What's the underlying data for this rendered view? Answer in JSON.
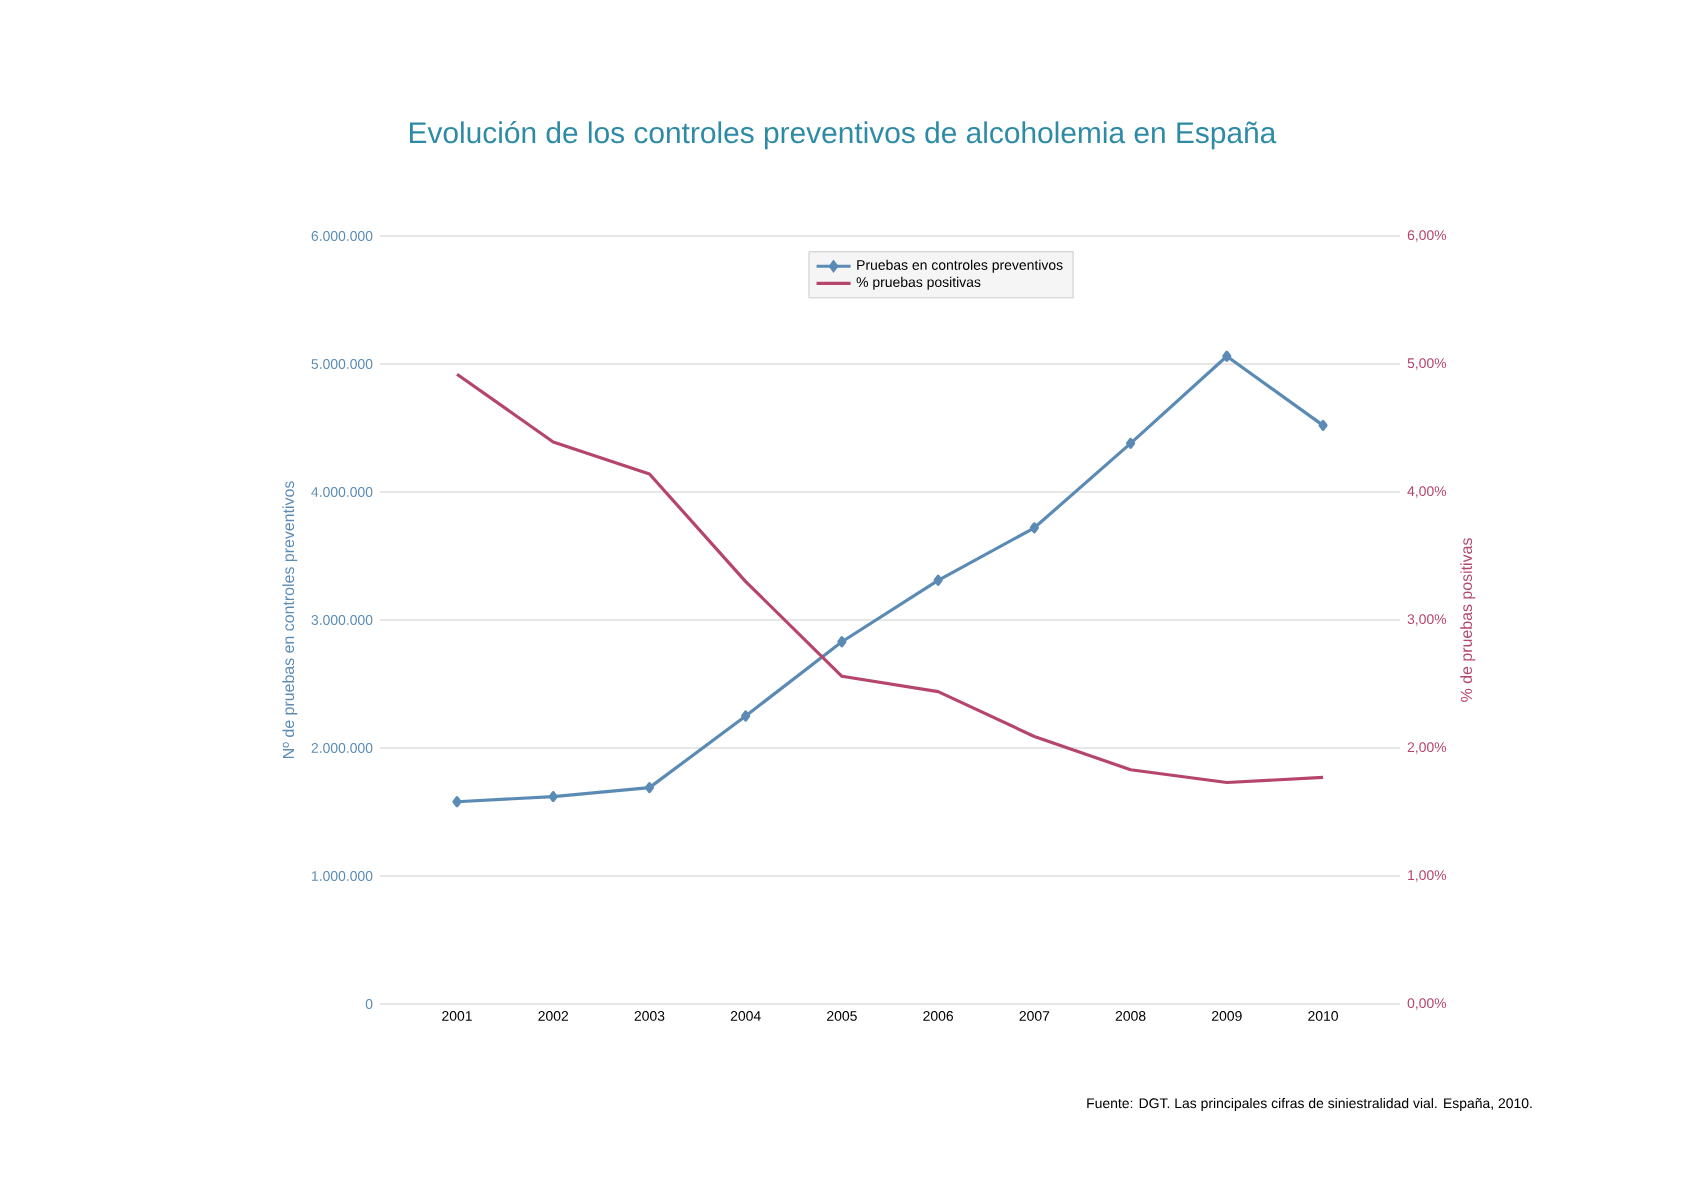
{
  "chart_data": {
    "type": "line",
    "title": "Evolución de los controles preventivos de alcoholemia en España",
    "ylabel": "Nº de pruebas en controles preventivos",
    "y2label": "% de pruebas positivas",
    "categories": [
      "2001",
      "2002",
      "2003",
      "2004",
      "2005",
      "2006",
      "2007",
      "2008",
      "2009",
      "2010"
    ],
    "series": [
      {
        "name": "Pruebas en controles preventivos",
        "color": "#5b8bb5",
        "marker": "diamond",
        "values": [
          1580000,
          1620000,
          1690000,
          2250000,
          2830000,
          3310000,
          3720000,
          4380000,
          5060000,
          4520000
        ]
      },
      {
        "name": "% pruebas positivas",
        "color": "#b5456b",
        "axis": "y2",
        "values": [
          4.92,
          4.39,
          4.14,
          3.3,
          2.56,
          2.44,
          2.09,
          1.83,
          1.73,
          1.77
        ]
      }
    ],
    "ylim": [
      0,
      6000000
    ],
    "yticks": [
      {
        "value": 0,
        "label": "0"
      },
      {
        "value": 1000000,
        "label": "1.000.000"
      },
      {
        "value": 2000000,
        "label": "2.000.000"
      },
      {
        "value": 3000000,
        "label": "3.000.000"
      },
      {
        "value": 4000000,
        "label": "4.000.000"
      },
      {
        "value": 5000000,
        "label": "5.000.000"
      },
      {
        "value": 6000000,
        "label": "6.000.000"
      }
    ],
    "y2lim": [
      0,
      6
    ],
    "y2ticks": [
      {
        "value": 0,
        "label": "0,00%"
      },
      {
        "value": 1,
        "label": "1,00%"
      },
      {
        "value": 2,
        "label": "2,00%"
      },
      {
        "value": 3,
        "label": "3,00%"
      },
      {
        "value": 4,
        "label": "4,00%"
      },
      {
        "value": 5,
        "label": "5,00%"
      },
      {
        "value": 6,
        "label": "6,00%"
      }
    ],
    "grid": "y",
    "legend": "top",
    "annotations": [
      "Fuente: DGT. Las principales cifras de siniestralidad vial. España, 2010."
    ]
  }
}
